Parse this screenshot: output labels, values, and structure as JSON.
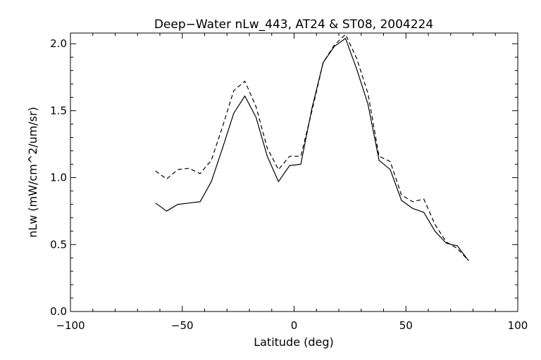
{
  "chart_data": {
    "type": "line",
    "title": "Deep−Water nLw_443, AT24 & ST08, 2004224",
    "xlabel": "Latitude (deg)",
    "ylabel": "nLw (mW/cm^2/um/sr)",
    "xlim": [
      -100,
      100
    ],
    "ylim": [
      0.0,
      2.08
    ],
    "xticks": [
      -100,
      -50,
      0,
      50,
      100
    ],
    "xtick_labels": [
      "−100",
      "−50",
      "0",
      "50",
      "100"
    ],
    "yticks": [
      0.0,
      0.5,
      1.0,
      1.5,
      2.0
    ],
    "ytick_labels": [
      "0.0",
      "0.5",
      "1.0",
      "1.5",
      "2.0"
    ],
    "grid": false,
    "series": [
      {
        "style": "solid",
        "color": "#000000",
        "x": [
          -62,
          -57,
          -52,
          -47,
          -42,
          -37,
          -32,
          -27,
          -22,
          -17,
          -12,
          -7,
          -2,
          3,
          8,
          13,
          18,
          23,
          28,
          33,
          38,
          43,
          48,
          53,
          58,
          63,
          68,
          73,
          78
        ],
        "y": [
          0.81,
          0.75,
          0.8,
          0.81,
          0.82,
          0.97,
          1.22,
          1.48,
          1.61,
          1.45,
          1.16,
          0.97,
          1.09,
          1.1,
          1.52,
          1.86,
          1.98,
          2.04,
          1.81,
          1.55,
          1.13,
          1.06,
          0.83,
          0.77,
          0.74,
          0.6,
          0.51,
          0.49,
          0.38
        ]
      },
      {
        "style": "dashed",
        "color": "#000000",
        "x": [
          -62,
          -57,
          -52,
          -47,
          -42,
          -37,
          -32,
          -27,
          -22,
          -17,
          -12,
          -7,
          -2,
          3,
          8,
          13,
          18,
          23,
          28,
          33,
          38,
          43,
          48,
          53,
          58,
          63,
          68,
          73,
          78
        ],
        "y": [
          1.05,
          0.99,
          1.06,
          1.07,
          1.03,
          1.13,
          1.38,
          1.65,
          1.72,
          1.53,
          1.22,
          1.06,
          1.16,
          1.16,
          1.5,
          1.86,
          1.99,
          2.07,
          1.89,
          1.63,
          1.16,
          1.12,
          0.87,
          0.82,
          0.84,
          0.65,
          0.52,
          0.47,
          0.38
        ]
      }
    ]
  }
}
